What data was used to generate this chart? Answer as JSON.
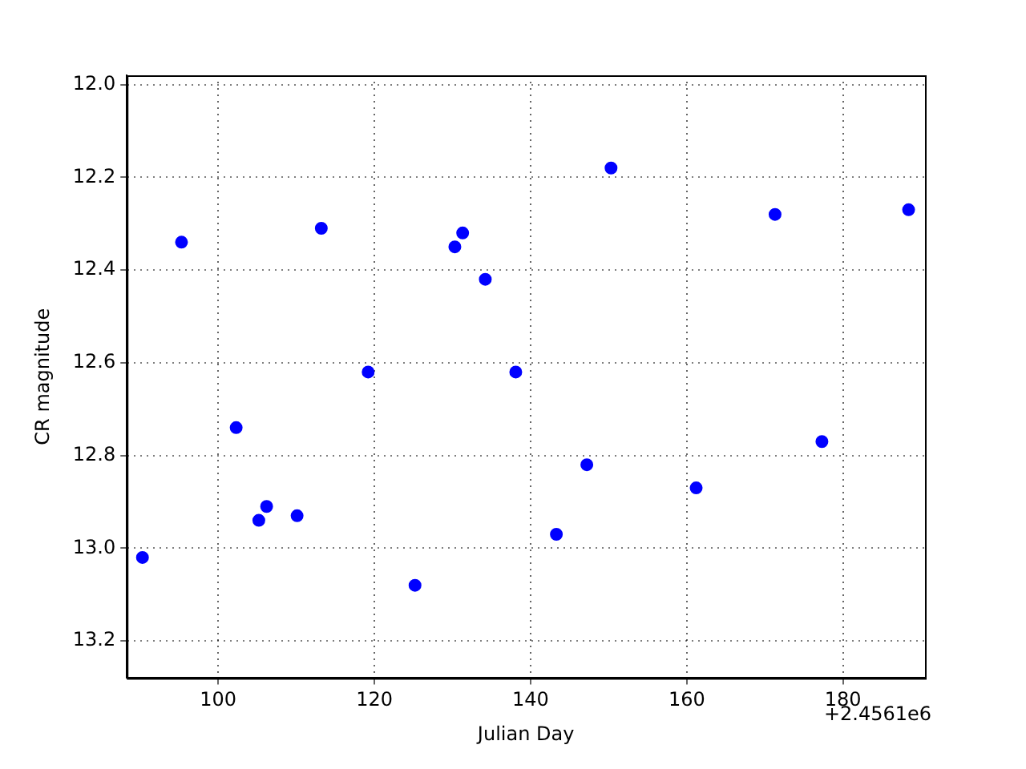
{
  "chart_data": {
    "type": "scatter",
    "xlabel": "Julian Day",
    "ylabel": "CR magnitude",
    "annotations": [
      "+2.4561e6"
    ],
    "x": [
      90.3,
      95.3,
      102.3,
      105.2,
      106.2,
      110.1,
      113.2,
      119.2,
      125.2,
      130.3,
      131.3,
      134.2,
      138.1,
      143.3,
      147.2,
      150.3,
      161.2,
      171.3,
      177.3,
      188.4
    ],
    "series": [
      {
        "color": "#0000ff",
        "values": [
          13.02,
          12.34,
          12.74,
          12.94,
          12.91,
          12.93,
          12.31,
          12.62,
          13.08,
          12.35,
          12.32,
          12.42,
          12.62,
          12.97,
          12.82,
          12.18,
          12.87,
          12.28,
          12.77,
          12.27
        ]
      }
    ],
    "xlim": [
      88.3,
      190.5
    ],
    "xticks": [
      100,
      120,
      140,
      160,
      180
    ],
    "ylim": [
      13.28,
      11.98
    ],
    "yticks": [
      {
        "value": 12.0,
        "label": "12.0"
      },
      {
        "value": 12.2,
        "label": "12.2"
      },
      {
        "value": 12.4,
        "label": "12.4"
      },
      {
        "value": 12.6,
        "label": "12.6"
      },
      {
        "value": 12.8,
        "label": "12.8"
      },
      {
        "value": 13.0,
        "label": "13.0"
      },
      {
        "value": 13.2,
        "label": "13.2"
      }
    ],
    "grid": true,
    "marker": "circle",
    "legend": false
  }
}
